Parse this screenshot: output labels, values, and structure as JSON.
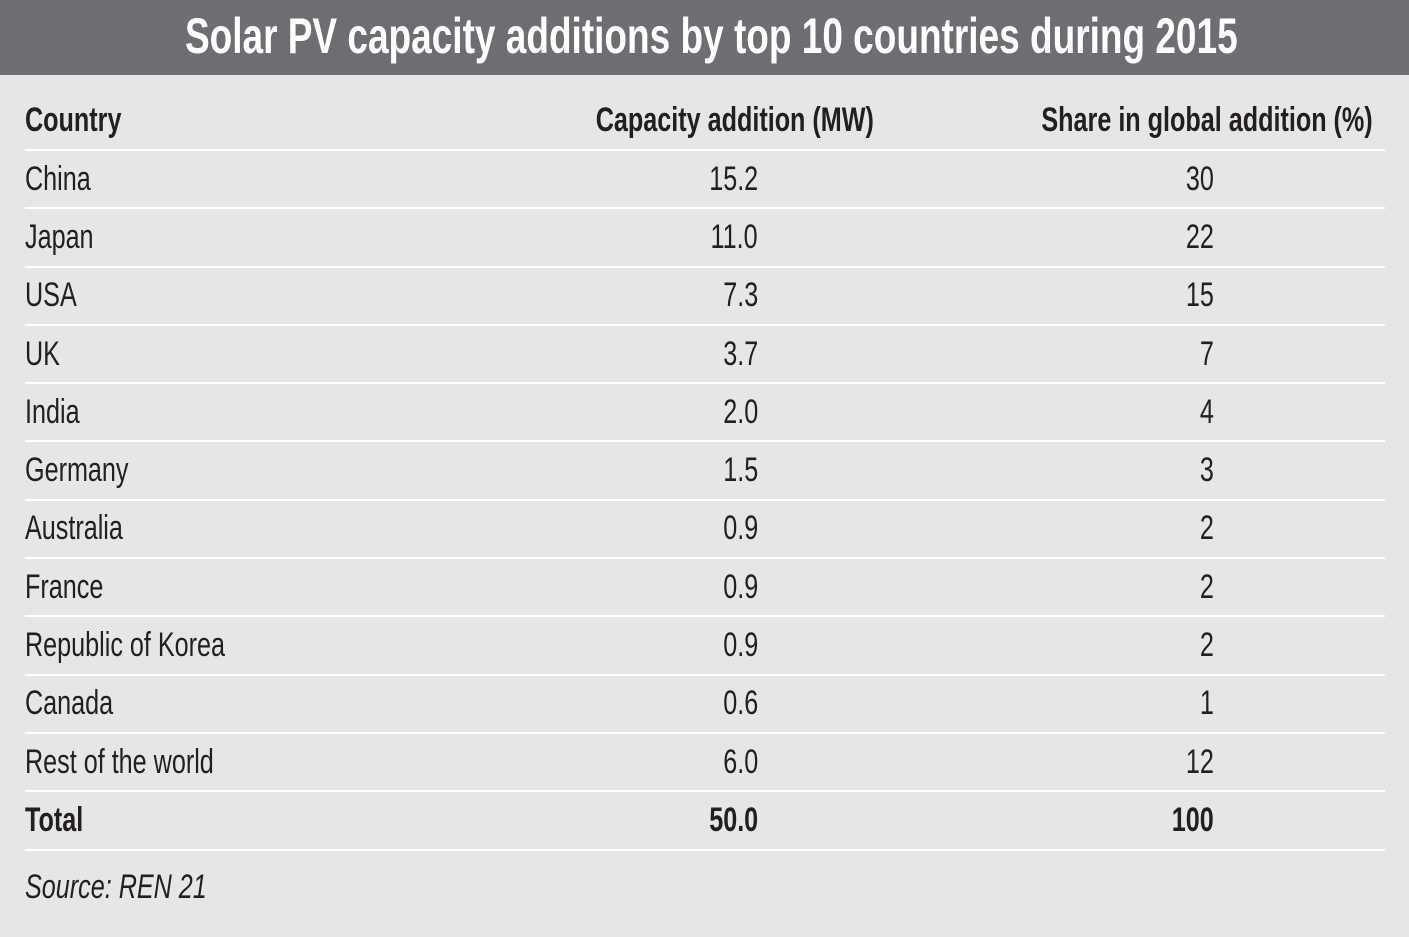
{
  "title": "Solar PV capacity additions by top 10 countries during 2015",
  "colors": {
    "title_bar": "#6d6e71",
    "background": "#e6e6e7",
    "text": "#231f20",
    "rule": "#ffffff"
  },
  "table": {
    "headers": [
      "Country",
      "Capacity addition (MW)",
      "Share in global addition (%)"
    ],
    "rows": [
      [
        "China",
        "15.2",
        "30"
      ],
      [
        "Japan",
        "11.0",
        "22"
      ],
      [
        "USA",
        "7.3",
        "15"
      ],
      [
        "UK",
        "3.7",
        "7"
      ],
      [
        "India",
        "2.0",
        "4"
      ],
      [
        "Germany",
        "1.5",
        "3"
      ],
      [
        "Australia",
        "0.9",
        "2"
      ],
      [
        "France",
        "0.9",
        "2"
      ],
      [
        "Republic of Korea",
        "0.9",
        "2"
      ],
      [
        "Canada",
        "0.6",
        "1"
      ],
      [
        "Rest of the world",
        "6.0",
        "12"
      ]
    ],
    "total": [
      "Total",
      "50.0",
      "100"
    ]
  },
  "source": "Source: REN 21",
  "chart_data": {
    "type": "table",
    "title": "Solar PV capacity additions by top 10 countries during 2015",
    "columns": [
      "Country",
      "Capacity addition (MW)",
      "Share in global addition (%)"
    ],
    "rows": [
      {
        "country": "China",
        "capacity_addition_mw": 15.2,
        "share_pct": 30
      },
      {
        "country": "Japan",
        "capacity_addition_mw": 11.0,
        "share_pct": 22
      },
      {
        "country": "USA",
        "capacity_addition_mw": 7.3,
        "share_pct": 15
      },
      {
        "country": "UK",
        "capacity_addition_mw": 3.7,
        "share_pct": 7
      },
      {
        "country": "India",
        "capacity_addition_mw": 2.0,
        "share_pct": 4
      },
      {
        "country": "Germany",
        "capacity_addition_mw": 1.5,
        "share_pct": 3
      },
      {
        "country": "Australia",
        "capacity_addition_mw": 0.9,
        "share_pct": 2
      },
      {
        "country": "France",
        "capacity_addition_mw": 0.9,
        "share_pct": 2
      },
      {
        "country": "Republic of Korea",
        "capacity_addition_mw": 0.9,
        "share_pct": 2
      },
      {
        "country": "Canada",
        "capacity_addition_mw": 0.6,
        "share_pct": 1
      },
      {
        "country": "Rest of the world",
        "capacity_addition_mw": 6.0,
        "share_pct": 12
      }
    ],
    "total": {
      "country": "Total",
      "capacity_addition_mw": 50.0,
      "share_pct": 100
    },
    "source": "Source: REN 21"
  }
}
